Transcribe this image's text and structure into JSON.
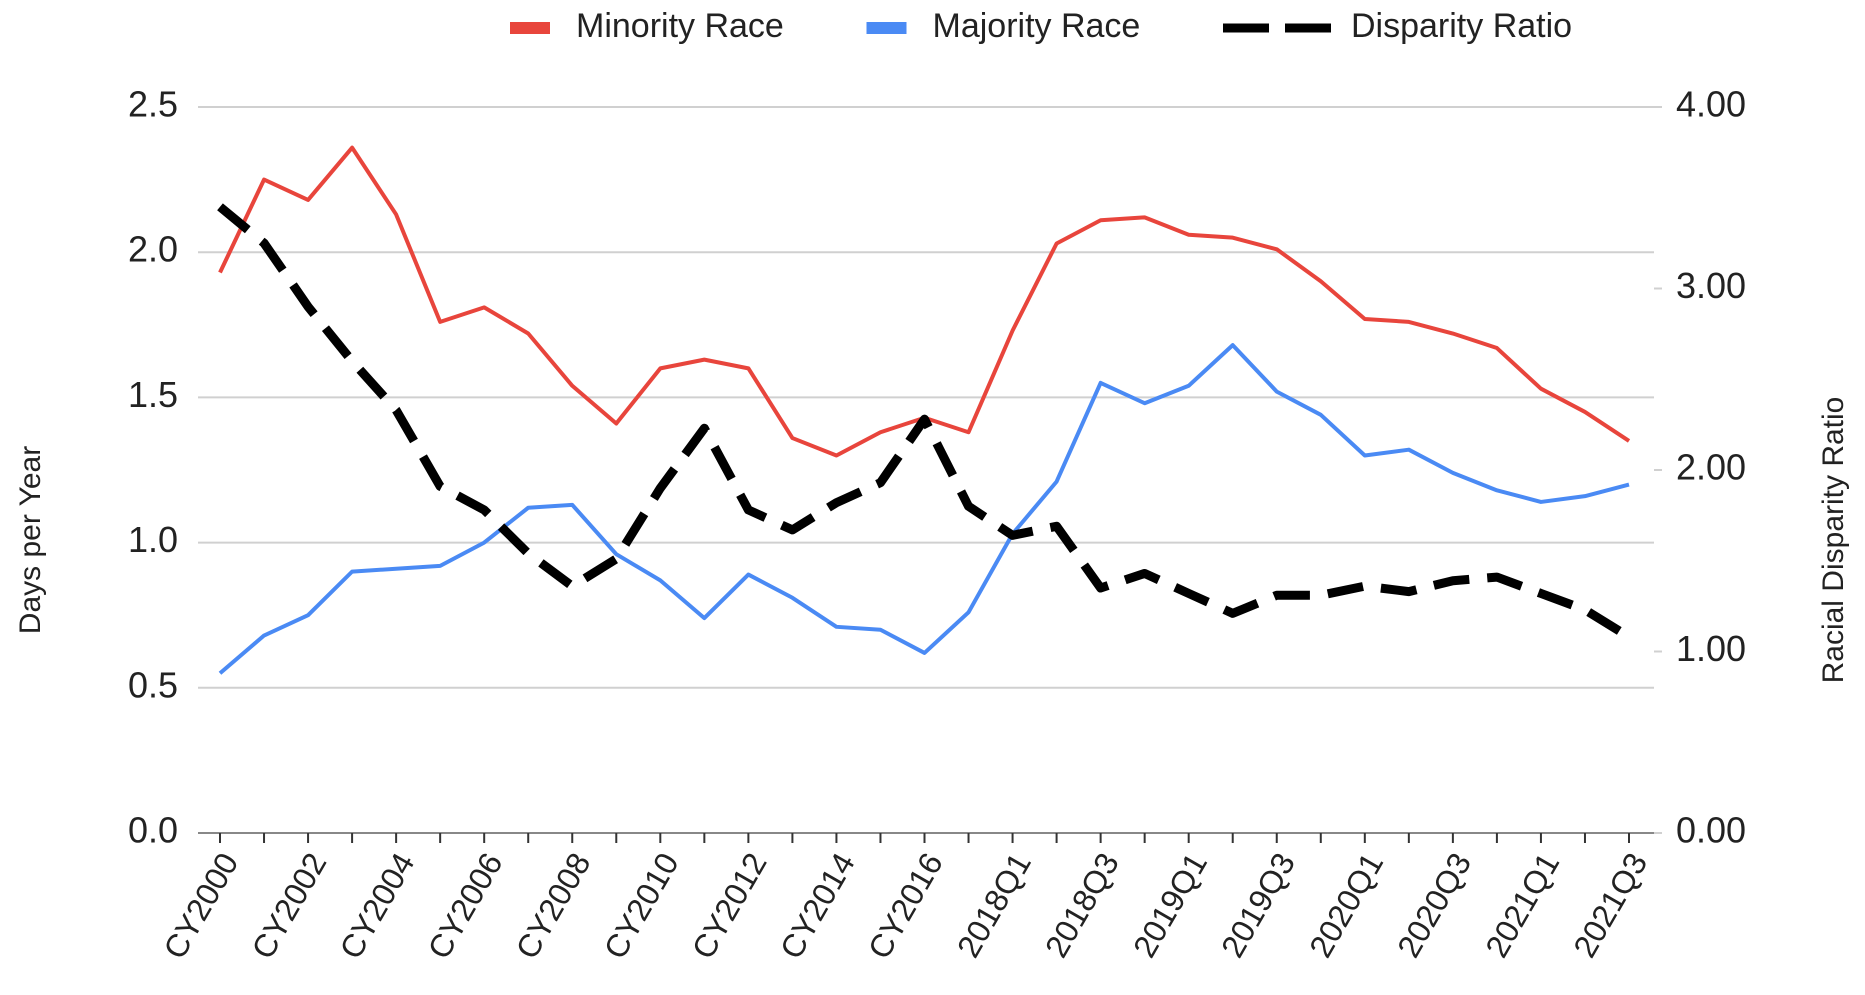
{
  "chart_data": {
    "type": "line",
    "categories": [
      "CY2000",
      null,
      "CY2002",
      null,
      "CY2004",
      null,
      "CY2006",
      null,
      "CY2008",
      null,
      "CY2010",
      null,
      "CY2012",
      null,
      "CY2014",
      null,
      "CY2016",
      null,
      "2018Q1",
      null,
      "2018Q3",
      null,
      "2019Q1",
      null,
      "2019Q3",
      null,
      "2020Q1",
      null,
      "2020Q3",
      null,
      "2021Q1",
      null,
      "2021Q3"
    ],
    "series": [
      {
        "name": "Minority Race",
        "color": "#e8453c",
        "values": [
          1.93,
          2.25,
          2.18,
          2.36,
          2.13,
          1.76,
          1.81,
          1.72,
          1.54,
          1.41,
          1.6,
          1.63,
          1.6,
          1.36,
          1.3,
          1.38,
          1.43,
          1.38,
          1.73,
          2.03,
          2.11,
          2.12,
          2.06,
          2.05,
          2.01,
          1.9,
          1.77,
          1.76,
          1.72,
          1.67,
          1.53,
          1.45,
          1.35
        ]
      },
      {
        "name": "Majority Race",
        "color": "#4a8af4",
        "values": [
          0.55,
          0.68,
          0.75,
          0.9,
          0.91,
          0.92,
          1.0,
          1.12,
          1.13,
          0.96,
          0.87,
          0.74,
          0.89,
          0.81,
          0.71,
          0.7,
          0.62,
          0.76,
          1.03,
          1.21,
          1.55,
          1.48,
          1.54,
          1.68,
          1.52,
          1.44,
          1.3,
          1.32,
          1.24,
          1.18,
          1.14,
          1.16,
          1.2
        ]
      },
      {
        "name": "Disparity Ratio",
        "color": "#000000",
        "dashed": true,
        "axis": "y2",
        "values": [
          3.45,
          3.25,
          2.9,
          2.6,
          2.33,
          1.91,
          1.78,
          1.54,
          1.36,
          1.51,
          1.9,
          2.23,
          1.78,
          1.67,
          1.82,
          1.93,
          2.28,
          1.8,
          1.64,
          1.69,
          1.35,
          1.43,
          1.32,
          1.21,
          1.31,
          1.31,
          1.36,
          1.33,
          1.39,
          1.41,
          1.32,
          1.23,
          1.08
        ]
      }
    ],
    "ylabel": "Days per Year",
    "y2label": "Racial Disparity Ratio",
    "ylim": [
      0,
      2.5
    ],
    "yticks": [
      {
        "value": 0,
        "label": "0.0"
      },
      0.5,
      {
        "value": 1,
        "label": "1.0"
      },
      1.5,
      {
        "value": 2,
        "label": "2.0"
      },
      2.5
    ],
    "y2lim": [
      0,
      4
    ],
    "y2ticks": [
      {
        "value": 0,
        "label": "0.00"
      },
      {
        "value": 1,
        "label": "1.00"
      },
      {
        "value": 2,
        "label": "2.00"
      },
      {
        "value": 3,
        "label": "3.00"
      },
      {
        "value": 4,
        "label": "4.00"
      }
    ],
    "grid": true,
    "legend": "top"
  }
}
